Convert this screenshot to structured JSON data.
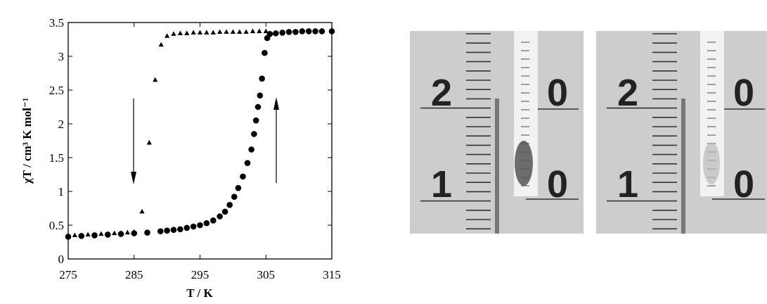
{
  "chart_data": {
    "type": "scatter",
    "xlabel": "T / K",
    "ylabel": "χT / cm³ K mol⁻¹",
    "xlim": [
      275,
      315
    ],
    "xticks": [
      275,
      285,
      295,
      305,
      315
    ],
    "ylim": [
      0,
      3.5
    ],
    "yticks": [
      0,
      0.5,
      1,
      1.5,
      2,
      2.5,
      3,
      3.5
    ],
    "series": [
      {
        "marker": "circle",
        "color": "#000000",
        "x": [
          275,
          277,
          279,
          281,
          283,
          285,
          287,
          289,
          290,
          291,
          292,
          293,
          294,
          295,
          296,
          297,
          298,
          298.8,
          299.5,
          300.2,
          300.8,
          301.5,
          302.2,
          302.8,
          303.2,
          303.5,
          303.8,
          304.1,
          304.4,
          304.8,
          305.2,
          305.6,
          306.5,
          307.5,
          308.5,
          309.5,
          310.5,
          311.5,
          312.5,
          313.5,
          315
        ],
        "y": [
          0.33,
          0.34,
          0.35,
          0.36,
          0.37,
          0.38,
          0.39,
          0.41,
          0.42,
          0.43,
          0.44,
          0.46,
          0.48,
          0.5,
          0.53,
          0.57,
          0.63,
          0.7,
          0.8,
          0.92,
          1.05,
          1.22,
          1.42,
          1.62,
          1.85,
          2.05,
          2.25,
          2.42,
          2.67,
          3.05,
          3.27,
          3.33,
          3.34,
          3.35,
          3.36,
          3.36,
          3.37,
          3.37,
          3.37,
          3.37,
          3.37
        ]
      },
      {
        "marker": "triangle",
        "color": "#000000",
        "x": [
          275,
          276,
          277,
          278,
          279,
          280,
          281,
          282,
          283,
          284,
          285,
          286.2,
          287.3,
          288.2,
          289.1,
          290,
          291,
          292,
          293,
          294,
          295,
          296,
          297,
          298,
          299,
          300,
          301,
          302,
          303,
          304,
          305
        ],
        "y": [
          0.34,
          0.35,
          0.35,
          0.36,
          0.36,
          0.37,
          0.37,
          0.38,
          0.38,
          0.39,
          0.4,
          0.7,
          1.72,
          2.65,
          3.17,
          3.3,
          3.33,
          3.34,
          3.34,
          3.35,
          3.35,
          3.35,
          3.35,
          3.36,
          3.36,
          3.36,
          3.36,
          3.36,
          3.37,
          3.37,
          3.37
        ]
      }
    ]
  },
  "photos": [
    {
      "digits": [
        "2",
        "0",
        "1",
        "0"
      ]
    },
    {
      "digits": [
        "2",
        "0",
        "1",
        "0"
      ]
    }
  ]
}
